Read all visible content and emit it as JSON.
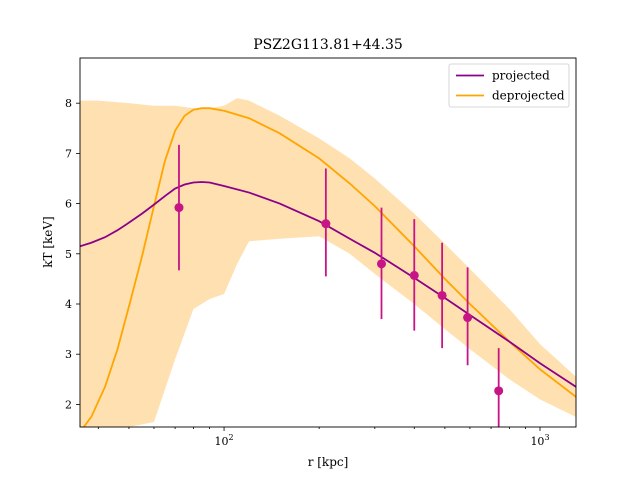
{
  "chart_data": {
    "type": "line",
    "title": "PSZ2G113.81+44.35",
    "xlabel": "r [kpc]",
    "ylabel": "kT [keV]",
    "xscale": "log",
    "xlim": [
      35,
      1300
    ],
    "ylim": [
      1.55,
      8.9
    ],
    "xticks": [
      {
        "value": 100,
        "label": "10",
        "exp": "2"
      },
      {
        "value": 1000,
        "label": "10",
        "exp": "3"
      }
    ],
    "yticks": [
      2,
      3,
      4,
      5,
      6,
      7,
      8
    ],
    "grid": false,
    "legend": {
      "position": "top-right",
      "entries": [
        "projected",
        "deprojected"
      ]
    },
    "colors": {
      "projected": "#8b008b",
      "deprojected": "#ffa500",
      "band": "#ffe0b0",
      "points": "#c71585"
    },
    "series": [
      {
        "name": "projected",
        "x": [
          35,
          38,
          42,
          46,
          50,
          55,
          60,
          65,
          70,
          75,
          80,
          85,
          90,
          100,
          120,
          150,
          200,
          250,
          300,
          400,
          500,
          600,
          800,
          1000,
          1300
        ],
        "y": [
          5.15,
          5.22,
          5.33,
          5.47,
          5.62,
          5.8,
          5.98,
          6.15,
          6.3,
          6.38,
          6.42,
          6.43,
          6.42,
          6.35,
          6.22,
          6.0,
          5.65,
          5.3,
          5.02,
          4.52,
          4.12,
          3.78,
          3.25,
          2.82,
          2.35
        ]
      },
      {
        "name": "deprojected",
        "x": [
          35,
          38,
          42,
          46,
          50,
          55,
          60,
          65,
          70,
          75,
          80,
          85,
          90,
          100,
          120,
          150,
          200,
          250,
          300,
          400,
          500,
          600,
          800,
          1000,
          1300
        ],
        "y": [
          1.45,
          1.75,
          2.35,
          3.1,
          3.95,
          4.95,
          5.95,
          6.85,
          7.45,
          7.75,
          7.87,
          7.9,
          7.9,
          7.85,
          7.7,
          7.4,
          6.9,
          6.4,
          5.95,
          5.15,
          4.5,
          4.0,
          3.25,
          2.7,
          2.15
        ]
      }
    ],
    "band": {
      "x": [
        35,
        40,
        50,
        60,
        70,
        80,
        90,
        100,
        110,
        120,
        150,
        200,
        250,
        300,
        400,
        500,
        600,
        800,
        1000,
        1300
      ],
      "upper": [
        8.05,
        8.05,
        8.0,
        7.95,
        7.95,
        7.9,
        7.9,
        7.95,
        8.1,
        8.05,
        7.75,
        7.3,
        6.9,
        6.5,
        5.8,
        5.2,
        4.7,
        3.9,
        3.2,
        2.55
      ],
      "lower": [
        1.55,
        1.55,
        1.55,
        1.65,
        2.9,
        3.9,
        4.1,
        4.2,
        4.8,
        5.25,
        5.3,
        5.35,
        5.0,
        4.6,
        4.0,
        3.5,
        3.1,
        2.5,
        2.1,
        1.75
      ]
    },
    "points": {
      "x": [
        72,
        210,
        315,
        400,
        490,
        590,
        740
      ],
      "y": [
        5.92,
        5.6,
        4.8,
        4.57,
        4.17,
        3.73,
        2.27
      ],
      "yerr_low": [
        1.25,
        1.05,
        1.1,
        1.1,
        1.05,
        0.95,
        0.75
      ],
      "yerr_high": [
        1.25,
        1.1,
        1.12,
        1.12,
        1.05,
        1.0,
        0.85
      ]
    }
  }
}
